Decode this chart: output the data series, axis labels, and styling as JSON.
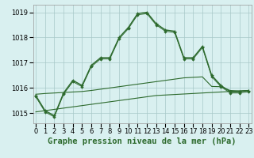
{
  "title": "Graphe pression niveau de la mer (hPa)",
  "x_labels": [
    "0",
    "1",
    "2",
    "3",
    "4",
    "5",
    "6",
    "7",
    "8",
    "9",
    "10",
    "11",
    "12",
    "13",
    "14",
    "15",
    "16",
    "17",
    "18",
    "19",
    "20",
    "21",
    "22",
    "23"
  ],
  "hours": [
    0,
    1,
    2,
    3,
    4,
    5,
    6,
    7,
    8,
    9,
    10,
    11,
    12,
    13,
    14,
    15,
    16,
    17,
    18,
    19,
    20,
    21,
    22,
    23
  ],
  "main_line": [
    1015.7,
    1015.1,
    1014.9,
    1015.8,
    1016.3,
    1016.1,
    1016.9,
    1017.2,
    1017.2,
    1018.0,
    1018.4,
    1018.95,
    1019.0,
    1018.55,
    1018.3,
    1018.25,
    1017.2,
    1017.2,
    1017.65,
    1016.5,
    1016.1,
    1015.85,
    1015.85,
    1015.9
  ],
  "flat_line1": [
    1015.75,
    1015.78,
    1015.8,
    1015.82,
    1015.84,
    1015.86,
    1015.9,
    1015.95,
    1016.0,
    1016.05,
    1016.1,
    1016.15,
    1016.2,
    1016.25,
    1016.3,
    1016.35,
    1016.4,
    1016.42,
    1016.44,
    1016.06,
    1016.05,
    1015.9,
    1015.88,
    1015.9
  ],
  "flat_line2": [
    1015.05,
    1015.1,
    1015.15,
    1015.2,
    1015.25,
    1015.3,
    1015.35,
    1015.4,
    1015.45,
    1015.5,
    1015.55,
    1015.6,
    1015.65,
    1015.7,
    1015.72,
    1015.74,
    1015.76,
    1015.78,
    1015.8,
    1015.82,
    1015.84,
    1015.86,
    1015.88,
    1015.9
  ],
  "line_color": "#2d6a2d",
  "bg_color": "#d9f0f0",
  "grid_color": "#a8c8c8",
  "ylim": [
    1014.6,
    1019.3
  ],
  "yticks": [
    1015,
    1016,
    1017,
    1018,
    1019
  ],
  "title_fontsize": 7.5,
  "tick_fontsize": 6.0,
  "figsize": [
    3.2,
    2.0
  ],
  "dpi": 100
}
